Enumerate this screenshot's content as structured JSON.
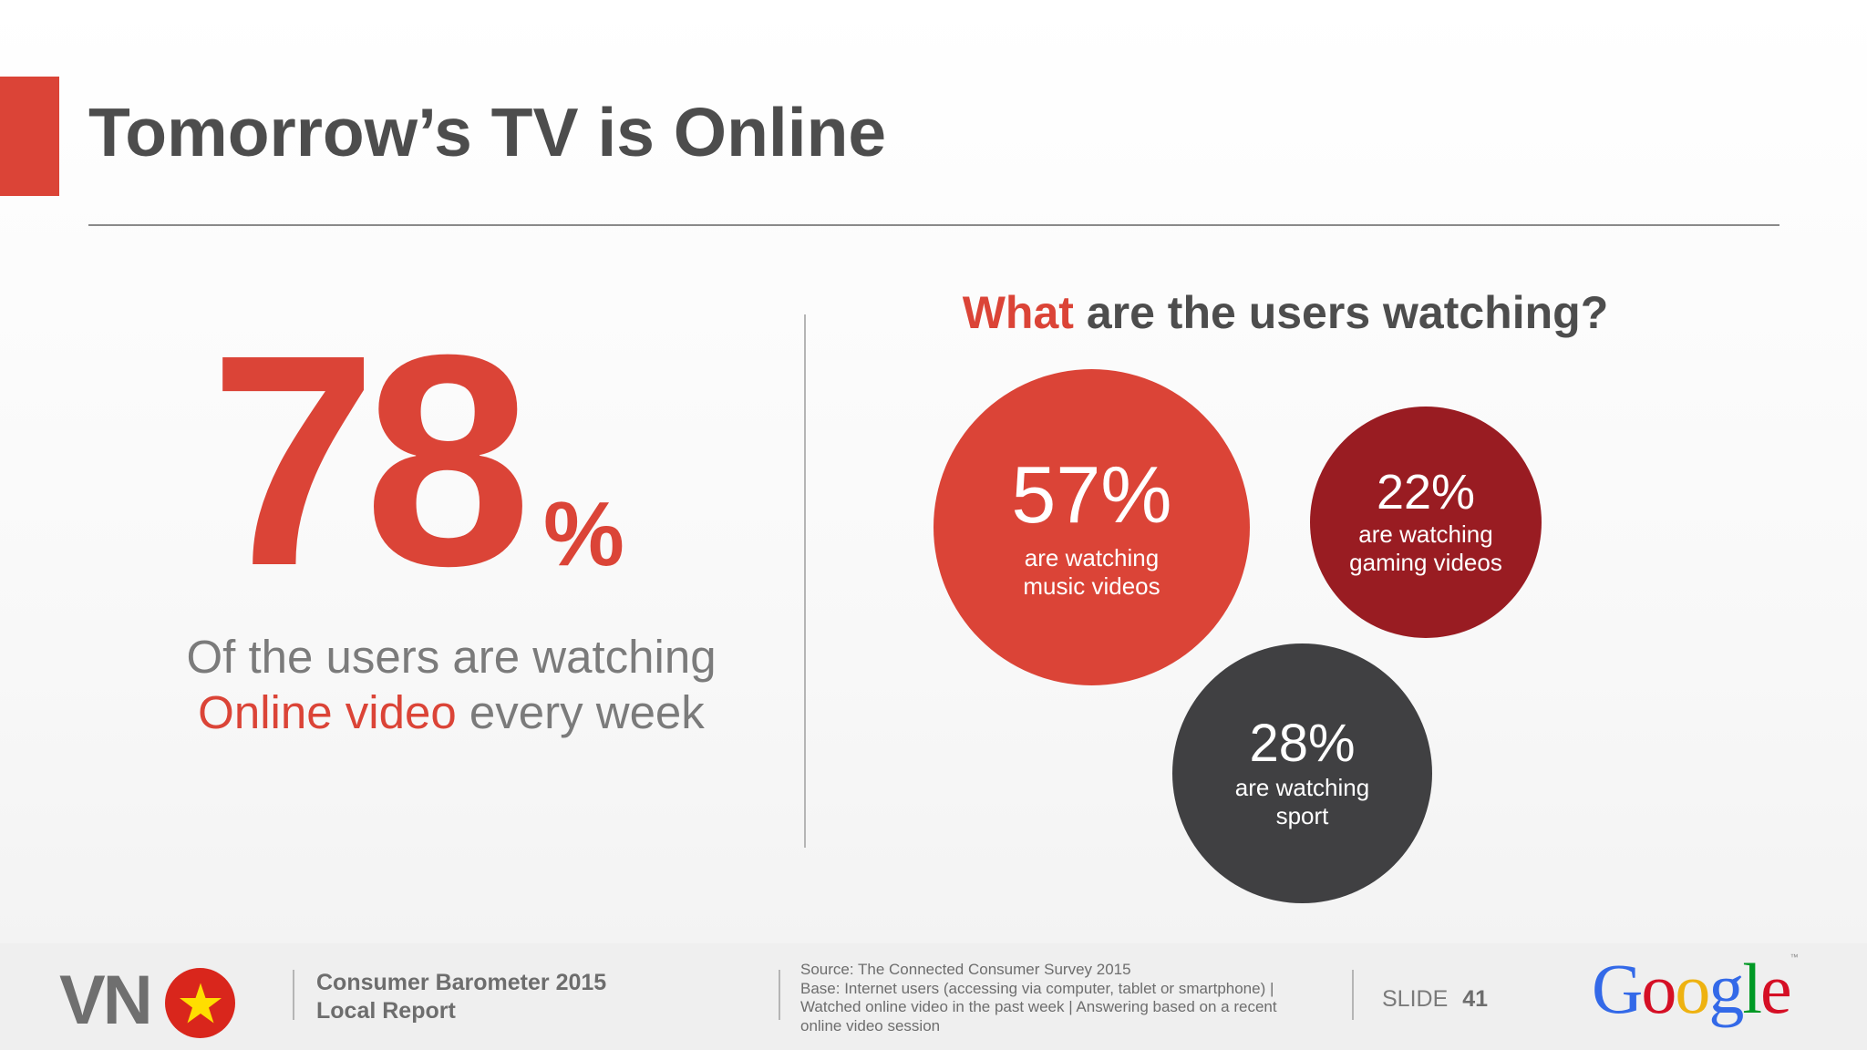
{
  "slide": {
    "title": "Tomorrow’s TV is Online"
  },
  "stat": {
    "value": "78",
    "unit": "%",
    "caption_line1": "Of the users are watching",
    "caption_highlight": "Online video",
    "caption_rest": "every week"
  },
  "question": {
    "highlight": "What",
    "rest": "are the users watching",
    "mark": "?"
  },
  "bubbles": [
    {
      "pct": "57%",
      "desc": "are watching music videos",
      "color": "#db4437"
    },
    {
      "pct": "22%",
      "desc": "are watching gaming videos",
      "color": "#991c22"
    },
    {
      "pct": "28%",
      "desc": "are watching sport",
      "color": "#404042"
    }
  ],
  "footer": {
    "country_code": "VN",
    "flag_icon": "vietnam-flag-icon",
    "report_line1": "Consumer Barometer 2015",
    "report_line2": "Local Report",
    "source_lines": [
      "Source: The Connected Consumer Survey 2015",
      "Base: Internet users (accessing via computer, tablet or smartphone) |",
      "Watched online video in the past week | Answering based on a recent",
      "online video session"
    ],
    "slide_label": "SLIDE",
    "slide_number": "41",
    "logo_letters": [
      "G",
      "o",
      "o",
      "g",
      "l",
      "e"
    ],
    "logo_tm": "™"
  },
  "colors": {
    "accent": "#db4437",
    "dark_red": "#991c22",
    "charcoal": "#404042",
    "title_gray": "#4d4d4d"
  }
}
